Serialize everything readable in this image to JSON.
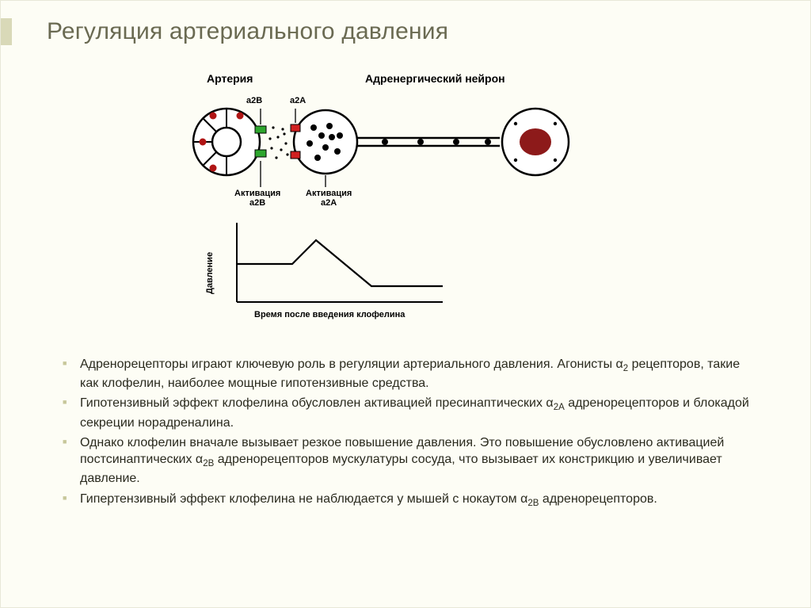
{
  "title": "Регуляция артериального давления",
  "diagram": {
    "labels": {
      "artery": "Артерия",
      "neuron": "Адренергический нейрон",
      "a2B": "а2В",
      "a2A": "а2А",
      "act_a2B": "Активация а2В",
      "act_a2A": "Активация а2А",
      "y_axis": "Давление",
      "x_axis": "Время после введения клофелина"
    },
    "colors": {
      "stroke": "#000000",
      "artery_fill": "#ffffff",
      "red": "#b01515",
      "green": "#2ea62e",
      "neuron_core": "#8d1a1a",
      "dot": "#000000"
    },
    "chart": {
      "type": "line",
      "x": [
        0,
        40,
        70,
        100,
        170,
        260
      ],
      "y": [
        52,
        52,
        52,
        22,
        80,
        80
      ],
      "y_axis_height": 100,
      "x_axis_width": 260,
      "line_width": 2.2,
      "line_color": "#000000"
    }
  },
  "bullets": [
    "Адренорецепторы играют ключевую роль в регуляции артериального давления. Агонисты α₂ рецепторов, такие как клофелин, наиболее мощные гипотензивные средства.",
    "Гипотензивный эффект клофелина обусловлен активацией пресинаптических α₂ₐ адренорецепторов и блокадой секреции норадреналина.",
    "Однако клофелин вначале вызывает резкое повышение давления. Это повышение обусловлено активацией постсинаптических α₂ᵦ адренорецепторов мускулатуры сосуда, что вызывает их констрикцию и увеличивает давление.",
    "Гипертензивный эффект клофелина не наблюдается у мышей с нокаутом α₂ᵦ адренорецепторов."
  ]
}
